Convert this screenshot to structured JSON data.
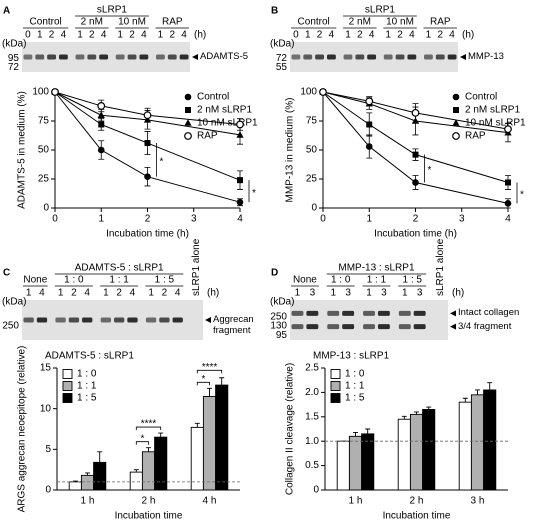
{
  "chart_data": [
    {
      "type": "line",
      "panel": "A",
      "gel": {
        "groups": [
          {
            "label": "Control",
            "lanes": [
              0,
              1,
              2,
              4
            ]
          },
          {
            "label": "sLRP1",
            "groups": [
              {
                "label": "2 nM",
                "lanes": [
                  1,
                  2,
                  4
                ]
              },
              {
                "label": "10 nM",
                "lanes": [
                  1,
                  2,
                  4
                ]
              }
            ]
          },
          {
            "label": "RAP",
            "lanes": [
              1,
              2,
              4
            ]
          }
        ],
        "lane_unit": "(h)",
        "kda_label": "(kDa)",
        "markers": [
          95,
          72
        ],
        "bands": [
          "ADAMTS-5"
        ]
      },
      "xlabel": "Incubation time (h)",
      "ylabel": "ADAMTS-5 in medium (%)",
      "x": [
        0,
        1,
        2,
        4
      ],
      "xlim": [
        0,
        4
      ],
      "xticks": [
        0,
        1,
        2,
        3,
        4
      ],
      "ylim": [
        0,
        100
      ],
      "yticks": [
        0,
        25,
        50,
        75,
        100
      ],
      "series": [
        {
          "name": "Control",
          "marker": "circle",
          "color": "#000000",
          "values": [
            100,
            50,
            27,
            5
          ],
          "errors": [
            0,
            8,
            8,
            3
          ]
        },
        {
          "name": "2 nM sLRP1",
          "marker": "square",
          "color": "#000000",
          "values": [
            100,
            72,
            56,
            24
          ],
          "errors": [
            0,
            5,
            10,
            8
          ]
        },
        {
          "name": "10 nM sLRP1",
          "marker": "triangle",
          "color": "#000000",
          "values": [
            100,
            80,
            76,
            63
          ],
          "errors": [
            0,
            5,
            8,
            8
          ]
        },
        {
          "name": "RAP",
          "marker": "open-circle",
          "color": "#000000",
          "values": [
            100,
            88,
            80,
            72
          ],
          "errors": [
            0,
            5,
            6,
            5
          ]
        }
      ],
      "annotations": [
        {
          "label": "*",
          "x": 2,
          "series": [
            0,
            1
          ]
        },
        {
          "label": "*",
          "x": 4,
          "series": [
            0,
            1
          ]
        }
      ]
    },
    {
      "type": "line",
      "panel": "B",
      "gel": {
        "groups": [
          {
            "label": "Control",
            "lanes": [
              0,
              1,
              2,
              4
            ]
          },
          {
            "label": "sLRP1",
            "groups": [
              {
                "label": "2 nM",
                "lanes": [
                  1,
                  2,
                  4
                ]
              },
              {
                "label": "10 nM",
                "lanes": [
                  1,
                  2,
                  4
                ]
              }
            ]
          },
          {
            "label": "RAP",
            "lanes": [
              1,
              2,
              4
            ]
          }
        ],
        "lane_unit": "(h)",
        "kda_label": "(kDa)",
        "markers": [
          72,
          55
        ],
        "bands": [
          "MMP-13"
        ]
      },
      "xlabel": "Incubation time (h)",
      "ylabel": "MMP-13 in medium (%)",
      "x": [
        0,
        1,
        2,
        4
      ],
      "xlim": [
        0,
        4
      ],
      "xticks": [
        0,
        1,
        2,
        3,
        4
      ],
      "ylim": [
        0,
        100
      ],
      "yticks": [
        0,
        25,
        50,
        75,
        100
      ],
      "series": [
        {
          "name": "Control",
          "marker": "circle",
          "color": "#000000",
          "values": [
            100,
            53,
            22,
            4
          ],
          "errors": [
            0,
            10,
            6,
            4
          ]
        },
        {
          "name": "2 nM sLRP1",
          "marker": "square",
          "color": "#000000",
          "values": [
            100,
            72,
            46,
            22
          ],
          "errors": [
            0,
            10,
            5,
            6
          ]
        },
        {
          "name": "10 nM sLRP1",
          "marker": "triangle",
          "color": "#000000",
          "values": [
            100,
            90,
            75,
            65
          ],
          "errors": [
            0,
            5,
            12,
            8
          ]
        },
        {
          "name": "RAP",
          "marker": "open-circle",
          "color": "#000000",
          "values": [
            100,
            92,
            82,
            68
          ],
          "errors": [
            0,
            4,
            8,
            5
          ]
        }
      ],
      "annotations": [
        {
          "label": "*",
          "x": 2,
          "series": [
            0,
            1
          ]
        },
        {
          "label": "*",
          "x": 4,
          "series": [
            0,
            1
          ]
        }
      ]
    },
    {
      "type": "bar",
      "panel": "C",
      "gel": {
        "groups": [
          {
            "label": "None",
            "lanes": [
              1,
              4
            ]
          },
          {
            "label": "ADAMTS-5 : sLRP1",
            "groups": [
              {
                "label": "1 : 0",
                "lanes": [
                  1,
                  2,
                  4
                ]
              },
              {
                "label": "1 : 1",
                "lanes": [
                  1,
                  2,
                  4
                ]
              },
              {
                "label": "1 : 5",
                "lanes": [
                  1,
                  2,
                  4
                ]
              }
            ]
          },
          {
            "label": "sLRP1 alone",
            "lanes": []
          }
        ],
        "lane_unit": "(h)",
        "kda_label": "(kDa)",
        "markers": [
          250
        ],
        "bands": [
          "Aggrecan fragment"
        ]
      },
      "title": "ADAMTS-5 : sLRP1",
      "xlabel": "Incubation time",
      "ylabel": "ARGS aggrecan neoepitope (relative)",
      "categories": [
        "1 h",
        "2 h",
        "4 h"
      ],
      "ylim": [
        0,
        15
      ],
      "yticks": [
        0,
        5,
        10,
        15
      ],
      "reference_line": 1,
      "series": [
        {
          "name": "1 : 0",
          "color": "#ffffff",
          "values": [
            1,
            2.2,
            7.7
          ],
          "errors": [
            0.1,
            0.3,
            0.5
          ]
        },
        {
          "name": "1 : 1",
          "color": "#b0b0b0",
          "values": [
            1.8,
            4.7,
            11.5
          ],
          "errors": [
            0.3,
            0.5,
            1.0
          ]
        },
        {
          "name": "1 : 5",
          "color": "#000000",
          "values": [
            3.4,
            6.5,
            12.9
          ],
          "errors": [
            1.3,
            0.5,
            0.9
          ]
        }
      ],
      "annotations": [
        {
          "label": "*",
          "category": 1,
          "series": [
            0,
            1
          ]
        },
        {
          "label": "****",
          "category": 1,
          "series": [
            0,
            2
          ]
        },
        {
          "label": "*",
          "category": 2,
          "series": [
            0,
            1
          ]
        },
        {
          "label": "****",
          "category": 2,
          "series": [
            0,
            2
          ]
        }
      ]
    },
    {
      "type": "bar",
      "panel": "D",
      "gel": {
        "groups": [
          {
            "label": "None",
            "lanes": [
              1,
              3
            ]
          },
          {
            "label": "MMP-13 : sLRP1",
            "groups": [
              {
                "label": "1 : 0",
                "lanes": [
                  1,
                  3
                ]
              },
              {
                "label": "1 : 1",
                "lanes": [
                  1,
                  3
                ]
              },
              {
                "label": "1 : 5",
                "lanes": [
                  1,
                  3
                ]
              }
            ]
          },
          {
            "label": "sLRP1 alone",
            "lanes": []
          }
        ],
        "lane_unit": "(h)",
        "kda_label": "(kDa)",
        "markers": [
          250,
          130,
          95
        ],
        "bands": [
          "Intact collagen",
          "3/4 fragment"
        ]
      },
      "title": "MMP-13 : sLRP1",
      "xlabel": "Incubation time",
      "ylabel": "Collagen II cleavage (relative)",
      "categories": [
        "1 h",
        "2 h",
        "3 h"
      ],
      "ylim": [
        0,
        2.5
      ],
      "yticks": [
        0,
        0.5,
        {
          "value": 1,
          "label": "1.0"
        },
        1.5,
        {
          "value": 2,
          "label": "2.0"
        },
        2.5
      ],
      "reference_line": 1,
      "series": [
        {
          "name": "1 : 0",
          "color": "#ffffff",
          "values": [
            1.0,
            1.45,
            1.8
          ],
          "errors": [
            0,
            0.06,
            0.08
          ]
        },
        {
          "name": "1 : 1",
          "color": "#b0b0b0",
          "values": [
            1.1,
            1.55,
            1.95
          ],
          "errors": [
            0.08,
            0.05,
            0.1
          ]
        },
        {
          "name": "1 : 5",
          "color": "#000000",
          "values": [
            1.15,
            1.65,
            2.05
          ],
          "errors": [
            0.1,
            0.05,
            0.15
          ]
        }
      ],
      "annotations": []
    }
  ]
}
